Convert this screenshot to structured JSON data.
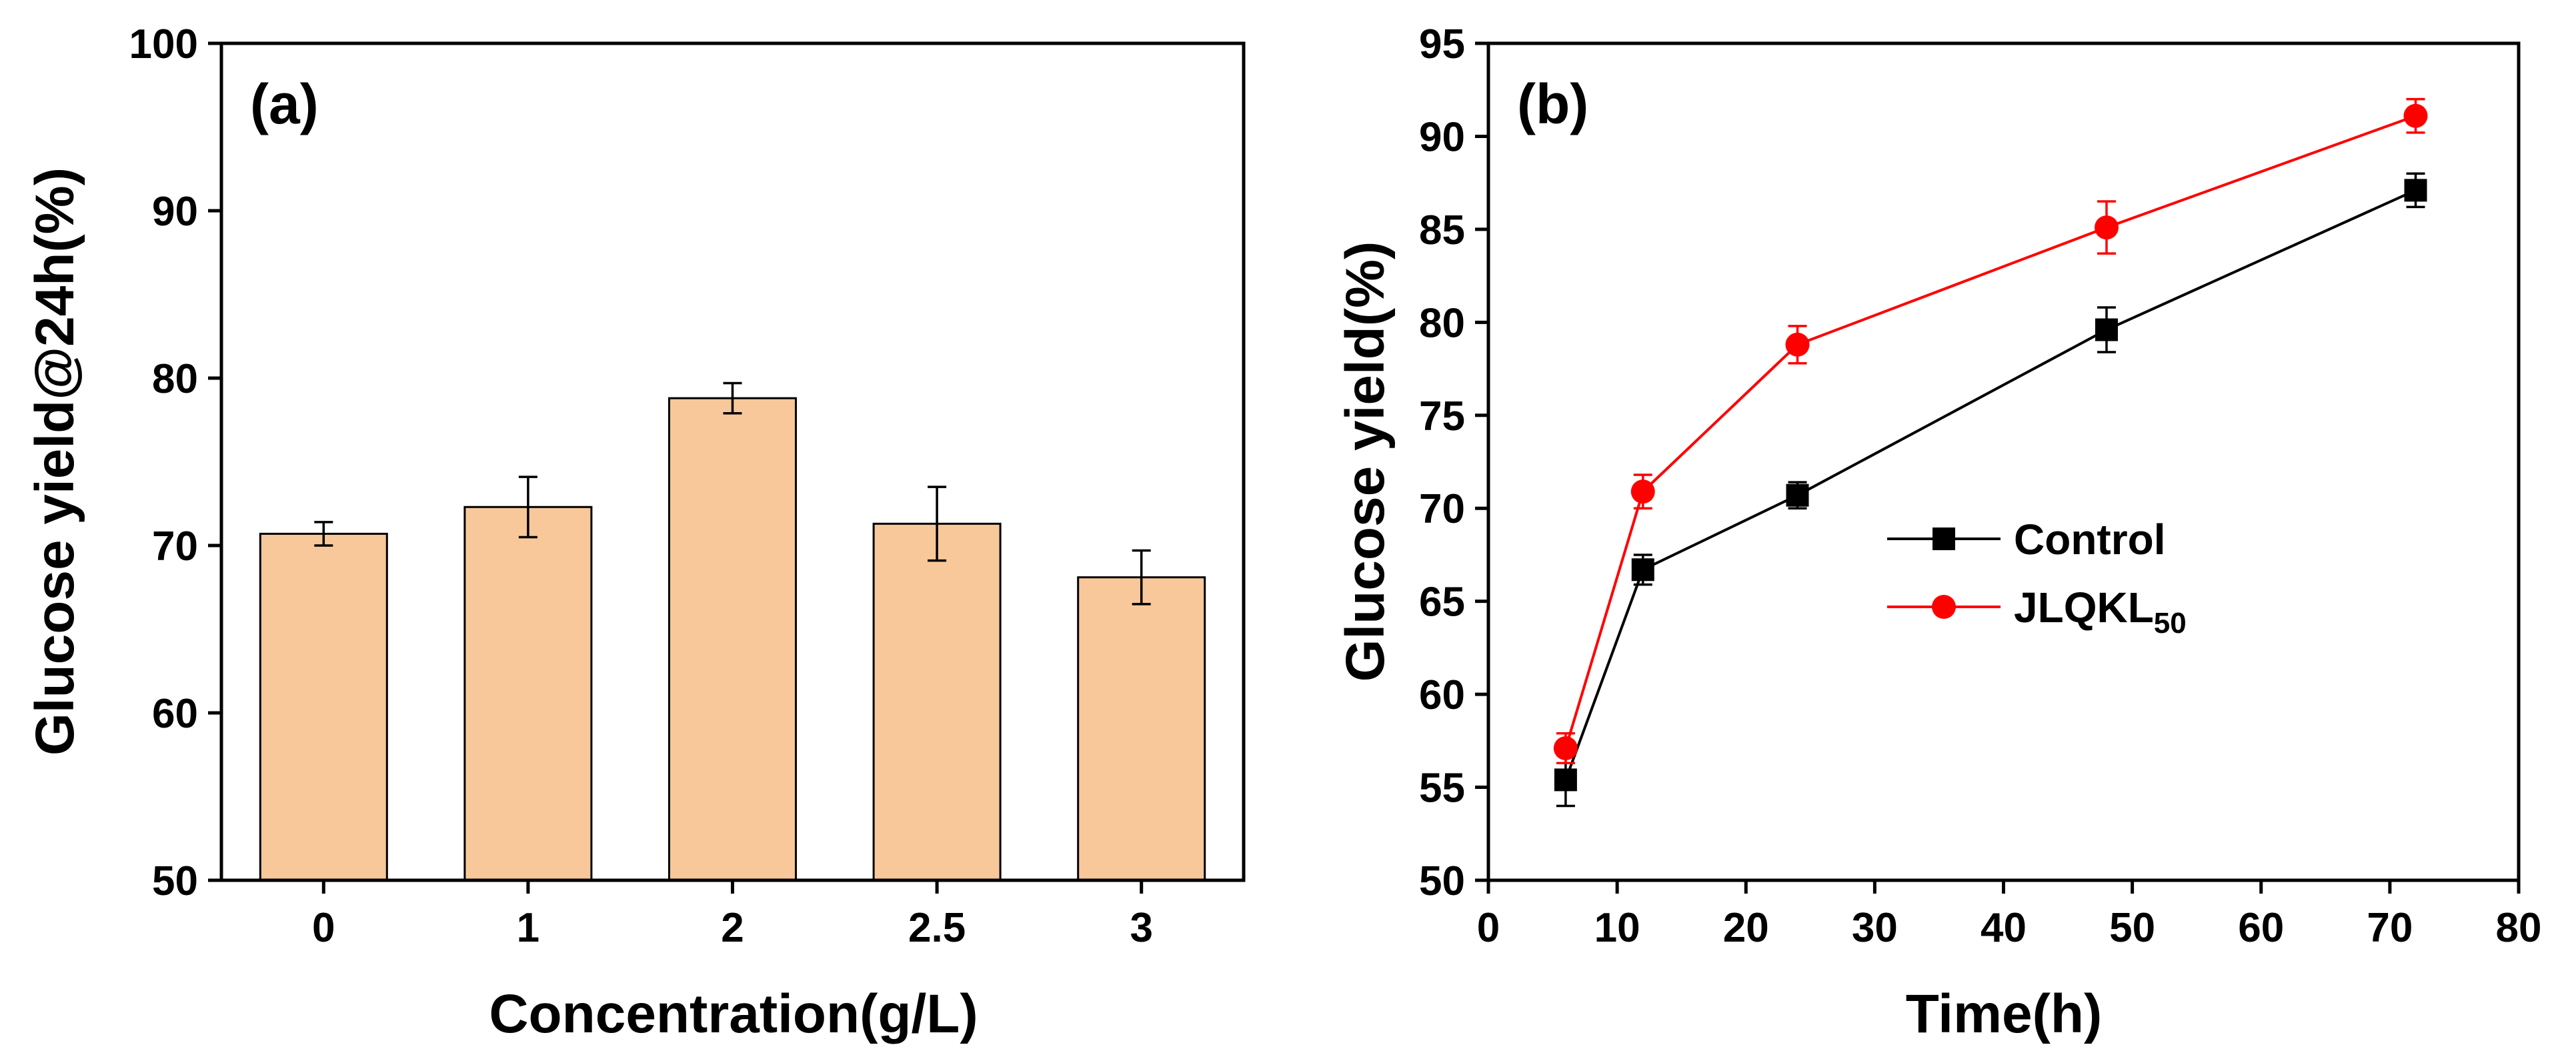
{
  "chart_data": [
    {
      "id": "a",
      "type": "bar",
      "panel_label": "(a)",
      "title": "",
      "xlabel": "Concentration(g/L)",
      "ylabel": "Glucose yield@24h(%)",
      "categories": [
        "0",
        "1",
        "2",
        "2.5",
        "3"
      ],
      "values": [
        70.7,
        72.3,
        78.8,
        71.3,
        68.1
      ],
      "errors": [
        0.7,
        1.8,
        0.9,
        2.2,
        1.6
      ],
      "ylim": [
        50,
        100
      ],
      "yticks": [
        50,
        60,
        70,
        80,
        90,
        100
      ],
      "bar_color": "#F8C89A",
      "grid": false
    },
    {
      "id": "b",
      "type": "line",
      "panel_label": "(b)",
      "title": "",
      "xlabel": "Time(h)",
      "ylabel": "Glucose yield(%)",
      "xlim": [
        0,
        80
      ],
      "ylim": [
        50,
        95
      ],
      "xticks": [
        0,
        10,
        20,
        30,
        40,
        50,
        60,
        70,
        80
      ],
      "yticks": [
        50,
        55,
        60,
        65,
        70,
        75,
        80,
        85,
        90,
        95
      ],
      "grid": false,
      "legend_position": "center-right",
      "series": [
        {
          "name": "Control",
          "legend_main": "Control",
          "legend_sub": "",
          "color": "#000000",
          "marker": "square",
          "x": [
            6,
            12,
            24,
            48,
            72
          ],
          "y": [
            55.4,
            66.7,
            70.7,
            79.6,
            87.1
          ],
          "errors": [
            1.4,
            0.8,
            0.7,
            1.2,
            0.9
          ]
        },
        {
          "name": "JLQKL50",
          "legend_main": "JLQKL",
          "legend_sub": "50",
          "color": "#FF0000",
          "marker": "circle",
          "x": [
            6,
            12,
            24,
            48,
            72
          ],
          "y": [
            57.1,
            70.9,
            78.8,
            85.1,
            91.1
          ],
          "errors": [
            0.8,
            0.9,
            1.0,
            1.4,
            0.9
          ]
        }
      ]
    }
  ]
}
